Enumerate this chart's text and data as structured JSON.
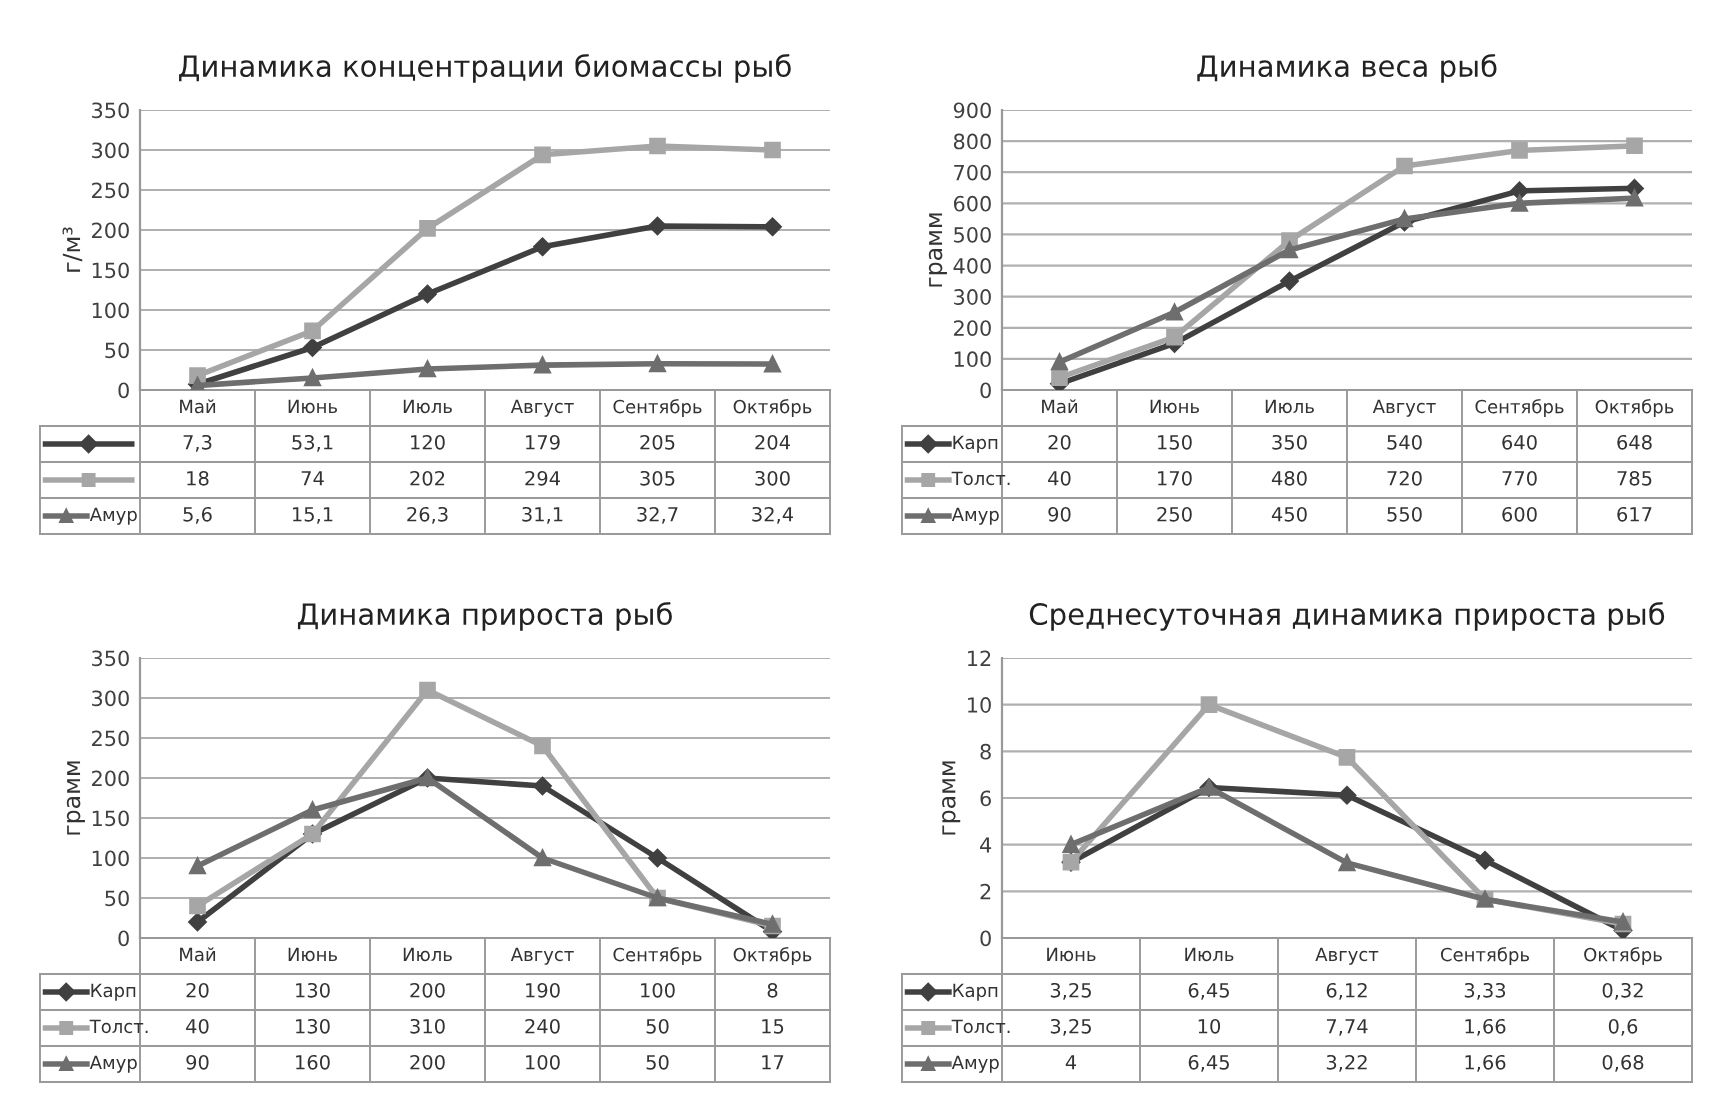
{
  "chart_data": [
    {
      "type": "line",
      "title": "Динамика концентрации биомассы рыб",
      "ylabel": "г/м³",
      "categories": [
        "Май",
        "Июнь",
        "Июль",
        "Август",
        "Сентябрь",
        "Октябрь"
      ],
      "ylim": [
        0,
        350
      ],
      "yticks": [
        0,
        50,
        100,
        150,
        200,
        250,
        300,
        350
      ],
      "grid": "y",
      "legend": "bottom",
      "series": [
        {
          "color": "#404040",
          "marker": "diamond",
          "values": [
            7.3,
            53.1,
            120,
            179,
            205,
            204
          ],
          "value_labels": [
            "7,3",
            "53,1",
            "120",
            "179",
            "205",
            "204"
          ]
        },
        {
          "color": "#a6a6a6",
          "marker": "square",
          "values": [
            18,
            74,
            202,
            294,
            305,
            300
          ],
          "value_labels": [
            "18",
            "74",
            "202",
            "294",
            "305",
            "300"
          ]
        },
        {
          "name": "Амур",
          "color": "#6e6e6e",
          "marker": "triangle",
          "values": [
            5.6,
            15.1,
            26.3,
            31.1,
            32.7,
            32.4
          ],
          "value_labels": [
            "5,6",
            "15,1",
            "26,3",
            "31,1",
            "32,7",
            "32,4"
          ]
        }
      ]
    },
    {
      "type": "line",
      "title": "Динамика веса рыб",
      "ylabel": "грамм",
      "categories": [
        "Май",
        "Июнь",
        "Июль",
        "Август",
        "Сентябрь",
        "Октябрь"
      ],
      "ylim": [
        0,
        900
      ],
      "yticks": [
        0,
        100,
        200,
        300,
        400,
        500,
        600,
        700,
        800,
        900
      ],
      "grid": "y",
      "legend": "bottom",
      "series": [
        {
          "name": "Карп",
          "color": "#404040",
          "marker": "diamond",
          "values": [
            20,
            150,
            350,
            540,
            640,
            648
          ],
          "value_labels": [
            "20",
            "150",
            "350",
            "540",
            "640",
            "648"
          ]
        },
        {
          "name": "Толст.",
          "color": "#a6a6a6",
          "marker": "square",
          "values": [
            40,
            170,
            480,
            720,
            770,
            785
          ],
          "value_labels": [
            "40",
            "170",
            "480",
            "720",
            "770",
            "785"
          ]
        },
        {
          "name": "Амур",
          "color": "#6e6e6e",
          "marker": "triangle",
          "values": [
            90,
            250,
            450,
            550,
            600,
            617
          ],
          "value_labels": [
            "90",
            "250",
            "450",
            "550",
            "600",
            "617"
          ]
        }
      ]
    },
    {
      "type": "line",
      "title": "Динамика прироста рыб",
      "ylabel": "грамм",
      "categories": [
        "Май",
        "Июнь",
        "Июль",
        "Август",
        "Сентябрь",
        "Октябрь"
      ],
      "ylim": [
        0,
        350
      ],
      "yticks": [
        0,
        50,
        100,
        150,
        200,
        250,
        300,
        350
      ],
      "grid": "y",
      "legend": "bottom",
      "series": [
        {
          "name": "Карп",
          "color": "#404040",
          "marker": "diamond",
          "values": [
            20,
            130,
            200,
            190,
            100,
            8
          ],
          "value_labels": [
            "20",
            "130",
            "200",
            "190",
            "100",
            "8"
          ]
        },
        {
          "name": "Толст.",
          "color": "#a6a6a6",
          "marker": "square",
          "values": [
            40,
            130,
            310,
            240,
            50,
            15
          ],
          "value_labels": [
            "40",
            "130",
            "310",
            "240",
            "50",
            "15"
          ]
        },
        {
          "name": "Амур",
          "color": "#6e6e6e",
          "marker": "triangle",
          "values": [
            90,
            160,
            200,
            100,
            50,
            17
          ],
          "value_labels": [
            "90",
            "160",
            "200",
            "100",
            "50",
            "17"
          ]
        }
      ]
    },
    {
      "type": "line",
      "title": "Среднесуточная динамика прироста рыб",
      "ylabel": "грамм",
      "categories": [
        "Июнь",
        "Июль",
        "Август",
        "Сентябрь",
        "Октябрь"
      ],
      "ylim": [
        0,
        12
      ],
      "yticks": [
        0,
        2,
        4,
        6,
        8,
        10,
        12
      ],
      "grid": "y",
      "legend": "bottom",
      "series": [
        {
          "name": "Карп",
          "color": "#404040",
          "marker": "diamond",
          "values": [
            3.25,
            6.45,
            6.12,
            3.33,
            0.32
          ],
          "value_labels": [
            "3,25",
            "6,45",
            "6,12",
            "3,33",
            "0,32"
          ]
        },
        {
          "name": "Толст.",
          "color": "#a6a6a6",
          "marker": "square",
          "values": [
            3.25,
            10,
            7.74,
            1.66,
            0.6
          ],
          "value_labels": [
            "3,25",
            "10",
            "7,74",
            "1,66",
            "0,6"
          ]
        },
        {
          "name": "Амур",
          "color": "#6e6e6e",
          "marker": "triangle",
          "values": [
            4,
            6.45,
            3.22,
            1.66,
            0.68
          ],
          "value_labels": [
            "4",
            "6,45",
            "3,22",
            "1,66",
            "0,68"
          ]
        }
      ]
    }
  ]
}
